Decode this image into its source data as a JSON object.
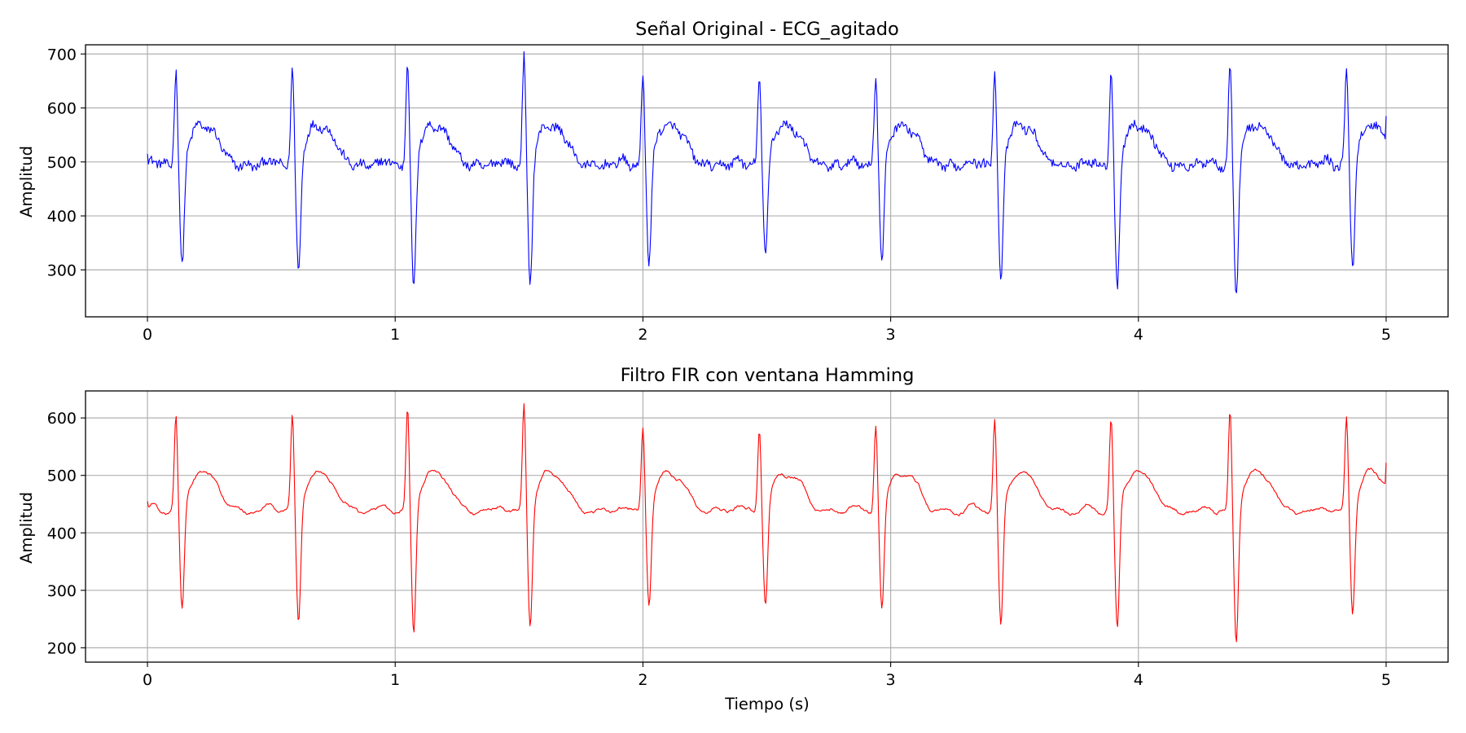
{
  "figure": {
    "panels": [
      {
        "title": "Señal Original - ECG_agitado",
        "ylabel": "Amplitud",
        "xlabel": ""
      },
      {
        "title": "Filtro FIR con ventana Hamming",
        "ylabel": "Amplitud",
        "xlabel": "Tiempo (s)"
      }
    ]
  },
  "chart_data": [
    {
      "type": "line",
      "title": "Señal Original - ECG_agitado",
      "xlabel": "",
      "ylabel": "Amplitud",
      "xlim": [
        -0.25,
        5.25
      ],
      "ylim": [
        213,
        717
      ],
      "xticks": [
        0,
        1,
        2,
        3,
        4,
        5
      ],
      "yticks": [
        300,
        400,
        500,
        600,
        700
      ],
      "grid": true,
      "line_color": "#0000ff",
      "x_range": [
        0,
        5
      ],
      "beats": [
        {
          "t": 0.115,
          "peak": 668,
          "trough": 288
        },
        {
          "t": 0.585,
          "peak": 671,
          "trough": 279
        },
        {
          "t": 1.05,
          "peak": 684,
          "trough": 250
        },
        {
          "t": 1.52,
          "peak": 692,
          "trough": 262
        },
        {
          "t": 2.0,
          "peak": 654,
          "trough": 302
        },
        {
          "t": 2.47,
          "peak": 656,
          "trough": 315
        },
        {
          "t": 2.94,
          "peak": 661,
          "trough": 299
        },
        {
          "t": 3.42,
          "peak": 673,
          "trough": 263
        },
        {
          "t": 3.89,
          "peak": 665,
          "trough": 251
        },
        {
          "t": 4.37,
          "peak": 680,
          "trough": 239
        },
        {
          "t": 4.84,
          "peak": 673,
          "trough": 293
        }
      ],
      "baseline": 493,
      "t_wave_peak": 585,
      "start_value": 515,
      "end_value": 585
    },
    {
      "type": "line",
      "title": "Filtro FIR con ventana Hamming",
      "xlabel": "Tiempo (s)",
      "ylabel": "Amplitud",
      "xlim": [
        -0.25,
        5.25
      ],
      "ylim": [
        175,
        647
      ],
      "xticks": [
        0,
        1,
        2,
        3,
        4,
        5
      ],
      "yticks": [
        200,
        300,
        400,
        500,
        600
      ],
      "grid": true,
      "line_color": "#ff0000",
      "x_range": [
        0,
        5
      ],
      "beats": [
        {
          "t": 0.115,
          "peak": 598,
          "trough": 247
        },
        {
          "t": 0.585,
          "peak": 601,
          "trough": 230
        },
        {
          "t": 1.05,
          "peak": 611,
          "trough": 211
        },
        {
          "t": 1.52,
          "peak": 623,
          "trough": 225
        },
        {
          "t": 2.0,
          "peak": 583,
          "trough": 262
        },
        {
          "t": 2.47,
          "peak": 582,
          "trough": 264
        },
        {
          "t": 2.94,
          "peak": 589,
          "trough": 254
        },
        {
          "t": 3.42,
          "peak": 600,
          "trough": 224
        },
        {
          "t": 3.89,
          "peak": 594,
          "trough": 218
        },
        {
          "t": 4.37,
          "peak": 613,
          "trough": 196
        },
        {
          "t": 4.84,
          "peak": 602,
          "trough": 248
        }
      ],
      "baseline": 437,
      "t_wave_peak": 520,
      "start_value": 455,
      "end_value": 522
    }
  ]
}
